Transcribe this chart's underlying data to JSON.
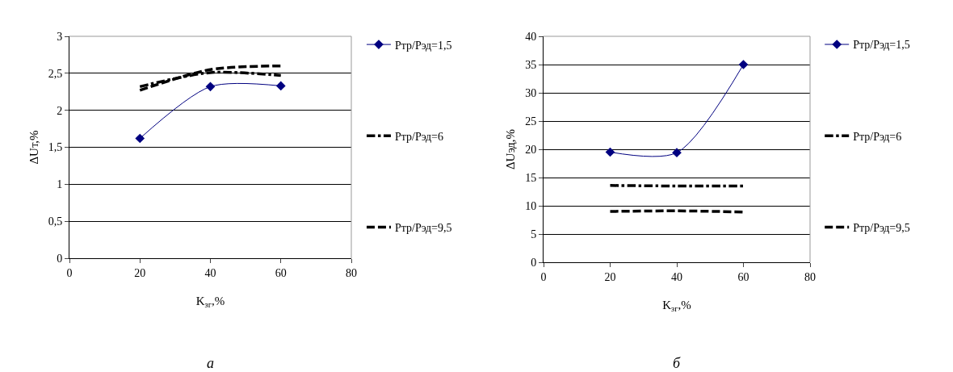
{
  "chart_data": [
    {
      "type": "line",
      "xlabel": "K$_{зг}$,%",
      "ylabel": "ΔUт,%",
      "x": [
        20,
        40,
        60
      ],
      "xlim": [
        0,
        80
      ],
      "xticks": [
        0,
        20,
        40,
        60,
        80
      ],
      "ylim": [
        0,
        3
      ],
      "yticks": [
        0,
        {
          "value": 0.5,
          "label": "0,5"
        },
        1,
        {
          "value": 1.5,
          "label": "1,5"
        },
        2,
        {
          "value": 2.5,
          "label": "2,5"
        },
        3
      ],
      "grid": "y",
      "legend": "right",
      "annotations": [
        "а"
      ],
      "series": [
        {
          "name": "Pтр/Pэд=1,5",
          "color": "#000080",
          "values": [
            1.62,
            2.32,
            2.33
          ],
          "marker": "diamond",
          "line_style": "solid"
        },
        {
          "name": "Pтр/Pэд=6",
          "color": "#000000",
          "values": [
            2.32,
            2.51,
            2.47
          ],
          "marker": "none",
          "line_style": "dashdot"
        },
        {
          "name": "Pтр/Pэд=9,5",
          "color": "#000000",
          "values": [
            2.27,
            2.55,
            2.6
          ],
          "marker": "none",
          "line_style": "dashed"
        }
      ]
    },
    {
      "type": "line",
      "xlabel": "K$_{зг}$,%",
      "ylabel": "ΔUэд,%",
      "x": [
        20,
        40,
        60
      ],
      "xlim": [
        0,
        80
      ],
      "xticks": [
        0,
        20,
        40,
        60,
        80
      ],
      "ylim": [
        0,
        40
      ],
      "yticks": [
        0,
        5,
        10,
        15,
        20,
        25,
        30,
        35,
        40
      ],
      "grid": "y",
      "legend": "right",
      "annotations": [
        "б"
      ],
      "series": [
        {
          "name": "Pтр/Pэд=1,5",
          "color": "#000080",
          "values": [
            19.5,
            19.4,
            35
          ],
          "marker": "diamond",
          "line_style": "solid"
        },
        {
          "name": "Pтр/Pэд=6",
          "color": "#000000",
          "values": [
            13.6,
            13.5,
            13.5
          ],
          "marker": "none",
          "line_style": "dashdot"
        },
        {
          "name": "Pтр/Pэд=9,5",
          "color": "#000000",
          "values": [
            9,
            9.1,
            8.9
          ],
          "marker": "none",
          "line_style": "dashed"
        }
      ]
    }
  ]
}
